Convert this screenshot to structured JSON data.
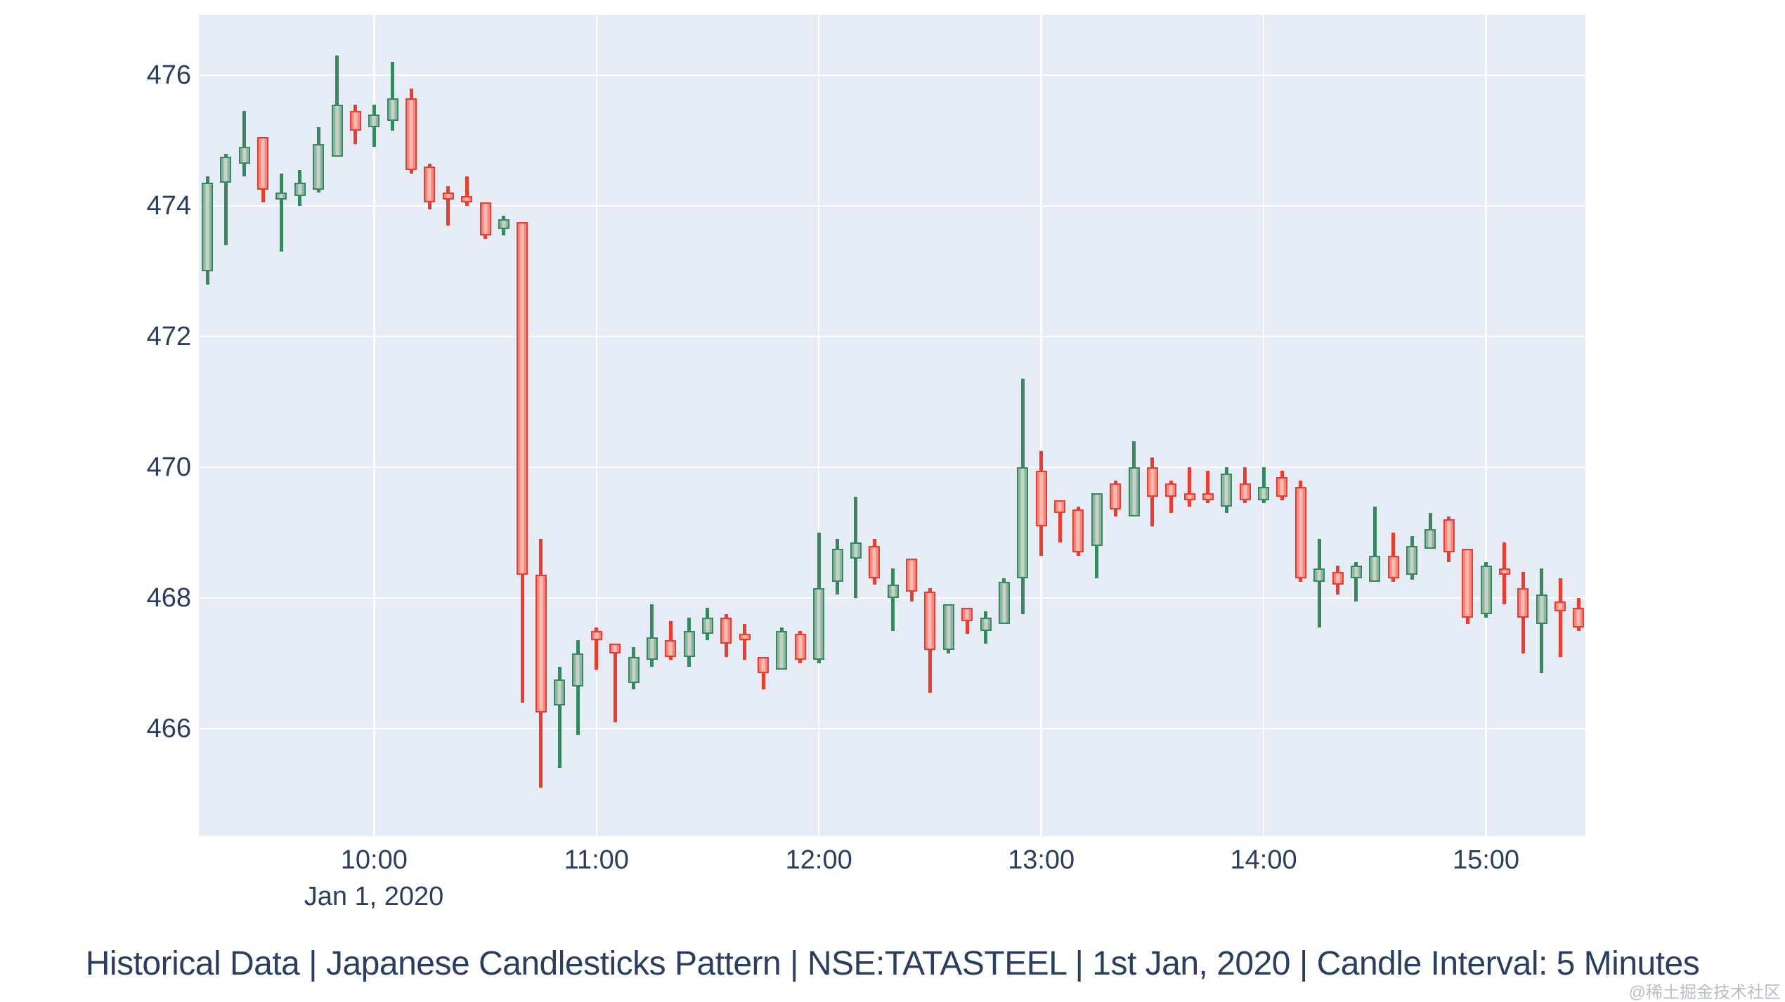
{
  "figure": {
    "title": "Historical Data | Japanese Candlesticks Pattern | NSE:TATASTEEL | 1st Jan, 2020 | Candle Interval: 5 Minutes",
    "watermark": "@稀土掘金技术社区"
  },
  "colors": {
    "increasing_line": "#35895f",
    "increasing_fill": "#8cb69d",
    "decreasing_line": "#f23a2c",
    "decreasing_fill": "#f6887e",
    "plot_background": "#e5ecf6",
    "gridline": "#ffffff",
    "axis_text": "#2a3f5f",
    "watermark_text": "#b9bfc9"
  },
  "chart_data": {
    "type": "candlestick",
    "symbol": "NSE:TATASTEEL",
    "interval": "5 Minutes",
    "x_date_label": "Jan 1, 2020",
    "x_ticks": [
      "10:00",
      "11:00",
      "12:00",
      "13:00",
      "14:00",
      "15:00"
    ],
    "y_ticks": [
      466,
      468,
      470,
      472,
      474,
      476
    ],
    "y_range": [
      464.35,
      476.92
    ],
    "session_start": "09:15",
    "legend": "none",
    "grid": "on",
    "columns": [
      "time",
      "open",
      "high",
      "low",
      "close"
    ],
    "candles": [
      [
        "09:15",
        473.0,
        474.45,
        472.8,
        474.35
      ],
      [
        "09:20",
        474.35,
        474.8,
        473.4,
        474.75
      ],
      [
        "09:25",
        474.65,
        475.45,
        474.45,
        474.9
      ],
      [
        "09:30",
        475.05,
        475.05,
        474.05,
        474.25
      ],
      [
        "09:35",
        474.1,
        474.5,
        473.3,
        474.2
      ],
      [
        "09:40",
        474.15,
        474.55,
        474.0,
        474.35
      ],
      [
        "09:45",
        474.25,
        475.2,
        474.2,
        474.95
      ],
      [
        "09:50",
        474.75,
        476.3,
        474.75,
        475.55
      ],
      [
        "09:55",
        475.45,
        475.55,
        474.95,
        475.15
      ],
      [
        "10:00",
        475.2,
        475.55,
        474.9,
        475.4
      ],
      [
        "10:05",
        475.3,
        476.2,
        475.15,
        475.65
      ],
      [
        "10:10",
        475.65,
        475.8,
        474.5,
        474.55
      ],
      [
        "10:15",
        474.6,
        474.65,
        473.95,
        474.05
      ],
      [
        "10:20",
        474.2,
        474.3,
        473.7,
        474.1
      ],
      [
        "10:25",
        474.15,
        474.45,
        474.0,
        474.05
      ],
      [
        "10:30",
        474.05,
        474.05,
        473.5,
        473.55
      ],
      [
        "10:35",
        473.65,
        473.85,
        473.55,
        473.8
      ],
      [
        "10:40",
        473.75,
        473.75,
        466.4,
        468.35
      ],
      [
        "10:45",
        468.35,
        468.9,
        465.1,
        466.25
      ],
      [
        "10:50",
        466.35,
        466.95,
        465.4,
        466.75
      ],
      [
        "10:55",
        466.65,
        467.35,
        465.9,
        467.15
      ],
      [
        "11:00",
        467.5,
        467.55,
        466.9,
        467.35
      ],
      [
        "11:05",
        467.3,
        467.3,
        466.1,
        467.15
      ],
      [
        "11:10",
        466.7,
        467.25,
        466.6,
        467.1
      ],
      [
        "11:15",
        467.05,
        467.9,
        466.95,
        467.4
      ],
      [
        "11:20",
        467.35,
        467.65,
        467.05,
        467.1
      ],
      [
        "11:25",
        467.1,
        467.7,
        466.95,
        467.5
      ],
      [
        "11:30",
        467.45,
        467.85,
        467.35,
        467.7
      ],
      [
        "11:35",
        467.7,
        467.75,
        467.1,
        467.3
      ],
      [
        "11:40",
        467.45,
        467.6,
        467.05,
        467.35
      ],
      [
        "11:45",
        467.1,
        467.1,
        466.6,
        466.85
      ],
      [
        "11:50",
        466.9,
        467.55,
        466.9,
        467.5
      ],
      [
        "11:55",
        467.45,
        467.5,
        467.0,
        467.05
      ],
      [
        "12:00",
        467.05,
        469.0,
        467.0,
        468.15
      ],
      [
        "12:05",
        468.25,
        468.9,
        468.05,
        468.75
      ],
      [
        "12:10",
        468.6,
        469.55,
        468.0,
        468.85
      ],
      [
        "12:15",
        468.8,
        468.9,
        468.2,
        468.3
      ],
      [
        "12:20",
        468.0,
        468.45,
        467.5,
        468.2
      ],
      [
        "12:25",
        468.6,
        468.6,
        467.95,
        468.1
      ],
      [
        "12:30",
        468.1,
        468.15,
        466.55,
        467.2
      ],
      [
        "12:35",
        467.2,
        467.9,
        467.15,
        467.9
      ],
      [
        "12:40",
        467.85,
        467.85,
        467.45,
        467.65
      ],
      [
        "12:45",
        467.5,
        467.8,
        467.3,
        467.7
      ],
      [
        "12:50",
        467.6,
        468.3,
        467.6,
        468.25
      ],
      [
        "12:55",
        468.3,
        471.35,
        467.75,
        470.0
      ],
      [
        "13:00",
        469.95,
        470.25,
        468.65,
        469.1
      ],
      [
        "13:05",
        469.5,
        469.5,
        468.85,
        469.3
      ],
      [
        "13:10",
        469.35,
        469.4,
        468.65,
        468.7
      ],
      [
        "13:15",
        468.8,
        469.6,
        468.3,
        469.6
      ],
      [
        "13:20",
        469.75,
        469.8,
        469.25,
        469.35
      ],
      [
        "13:25",
        469.25,
        470.4,
        469.25,
        470.0
      ],
      [
        "13:30",
        470.0,
        470.15,
        469.1,
        469.55
      ],
      [
        "13:35",
        469.75,
        469.8,
        469.3,
        469.55
      ],
      [
        "13:40",
        469.6,
        470.0,
        469.4,
        469.5
      ],
      [
        "13:45",
        469.6,
        469.95,
        469.45,
        469.5
      ],
      [
        "13:50",
        469.4,
        470.0,
        469.3,
        469.9
      ],
      [
        "13:55",
        469.75,
        470.0,
        469.45,
        469.5
      ],
      [
        "14:00",
        469.5,
        470.0,
        469.45,
        469.7
      ],
      [
        "14:05",
        469.85,
        469.95,
        469.5,
        469.55
      ],
      [
        "14:10",
        469.7,
        469.8,
        468.25,
        468.3
      ],
      [
        "14:15",
        468.25,
        468.9,
        467.55,
        468.45
      ],
      [
        "14:20",
        468.4,
        468.5,
        468.05,
        468.2
      ],
      [
        "14:25",
        468.3,
        468.55,
        467.95,
        468.5
      ],
      [
        "14:30",
        468.25,
        469.4,
        468.25,
        468.65
      ],
      [
        "14:35",
        468.65,
        469.0,
        468.25,
        468.3
      ],
      [
        "14:40",
        468.35,
        468.95,
        468.28,
        468.8
      ],
      [
        "14:45",
        468.75,
        469.3,
        468.75,
        469.05
      ],
      [
        "14:50",
        469.2,
        469.25,
        468.55,
        468.7
      ],
      [
        "14:55",
        468.75,
        468.75,
        467.6,
        467.7
      ],
      [
        "15:00",
        467.75,
        468.55,
        467.7,
        468.5
      ],
      [
        "15:05",
        468.45,
        468.85,
        467.9,
        468.35
      ],
      [
        "15:10",
        468.15,
        468.4,
        467.15,
        467.7
      ],
      [
        "15:15",
        467.6,
        468.45,
        466.85,
        468.05
      ],
      [
        "15:20",
        467.95,
        468.3,
        467.1,
        467.8
      ],
      [
        "15:25",
        467.85,
        468.0,
        467.5,
        467.55
      ]
    ]
  }
}
